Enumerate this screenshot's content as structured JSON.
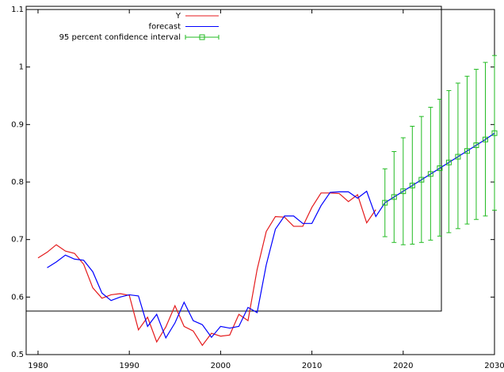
{
  "chart_data": {
    "type": "line",
    "xlim": [
      1978.7,
      2030
    ],
    "ylim": [
      0.5,
      1.1
    ],
    "xticks": [
      1980,
      1990,
      2000,
      2010,
      2020,
      2030
    ],
    "yticks": [
      0.5,
      0.6,
      0.7,
      0.8,
      0.9,
      1,
      1.1
    ],
    "series": [
      {
        "name": "Y",
        "color": "#e41a1c",
        "x": [
          1980,
          1981,
          1982,
          1983,
          1984,
          1985,
          1986,
          1987,
          1988,
          1989,
          1990,
          1991,
          1992,
          1993,
          1994,
          1995,
          1996,
          1997,
          1998,
          1999,
          2000,
          2001,
          2002,
          2003,
          2004,
          2005,
          2006,
          2007,
          2008,
          2009,
          2010,
          2011,
          2012,
          2013,
          2014,
          2015,
          2016,
          2017
        ],
        "values": [
          0.668,
          0.678,
          0.691,
          0.68,
          0.676,
          0.657,
          0.616,
          0.598,
          0.604,
          0.606,
          0.603,
          0.543,
          0.565,
          0.522,
          0.548,
          0.585,
          0.549,
          0.541,
          0.516,
          0.537,
          0.532,
          0.534,
          0.57,
          0.559,
          0.648,
          0.714,
          0.74,
          0.739,
          0.723,
          0.723,
          0.756,
          0.781,
          0.781,
          0.78,
          0.766,
          0.778,
          0.729,
          0.752
        ]
      },
      {
        "name": "forecast",
        "color": "#0000ff",
        "x": [
          1981,
          1982,
          1983,
          1984,
          1985,
          1986,
          1987,
          1988,
          1989,
          1990,
          1991,
          1992,
          1993,
          1994,
          1995,
          1996,
          1997,
          1998,
          1999,
          2000,
          2001,
          2002,
          2003,
          2004,
          2005,
          2006,
          2007,
          2008,
          2009,
          2010,
          2011,
          2012,
          2013,
          2014,
          2015,
          2016,
          2017,
          2018,
          2019,
          2020,
          2021,
          2022,
          2023,
          2024,
          2025,
          2026,
          2027,
          2028,
          2029,
          2030
        ],
        "values": [
          0.651,
          0.661,
          0.673,
          0.666,
          0.664,
          0.644,
          0.607,
          0.594,
          0.6,
          0.604,
          0.602,
          0.549,
          0.57,
          0.529,
          0.555,
          0.591,
          0.559,
          0.552,
          0.53,
          0.549,
          0.546,
          0.549,
          0.582,
          0.573,
          0.656,
          0.718,
          0.741,
          0.741,
          0.728,
          0.728,
          0.759,
          0.782,
          0.783,
          0.783,
          0.772,
          0.784,
          0.74,
          0.764,
          0.774,
          0.784,
          0.794,
          0.804,
          0.814,
          0.824,
          0.834,
          0.844,
          0.854,
          0.864,
          0.874,
          0.885
        ]
      },
      {
        "name": "95 percent confidence interval",
        "color": "#22bb22",
        "x": [
          2018,
          2019,
          2020,
          2021,
          2022,
          2023,
          2024,
          2025,
          2026,
          2027,
          2028,
          2029,
          2030
        ],
        "values": [
          0.764,
          0.774,
          0.784,
          0.794,
          0.804,
          0.814,
          0.824,
          0.834,
          0.844,
          0.854,
          0.864,
          0.874,
          0.885
        ],
        "low": [
          0.705,
          0.695,
          0.691,
          0.692,
          0.695,
          0.699,
          0.706,
          0.712,
          0.719,
          0.727,
          0.735,
          0.741,
          0.751
        ],
        "high": [
          0.823,
          0.853,
          0.877,
          0.897,
          0.914,
          0.93,
          0.944,
          0.959,
          0.972,
          0.984,
          0.996,
          1.008,
          1.02
        ]
      }
    ]
  }
}
